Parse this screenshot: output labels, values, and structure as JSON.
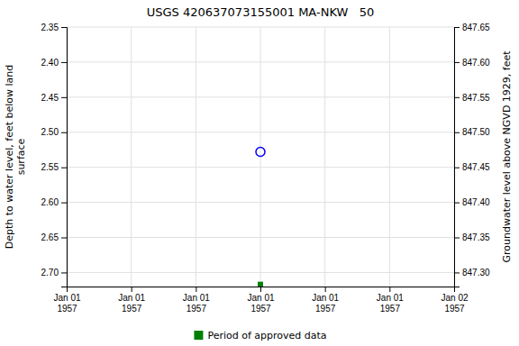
{
  "chart_data": {
    "type": "scatter",
    "title": "USGS 420637073155001 MA-NKW   50",
    "y_label": "Depth to water level, feet below land\n surface",
    "y2_label": "Groundwater level above NGVD 1929, feet",
    "categories": [
      "Jan 01\n1957",
      "Jan 01\n1957",
      "Jan 01\n1957",
      "Jan 01\n1957",
      "Jan 01\n1957",
      "Jan 01\n1957",
      "Jan 02\n1957"
    ],
    "series": [
      {
        "color": "#0000ff",
        "marker": "circle-open",
        "values": [
          null,
          null,
          null,
          2.528,
          null,
          null,
          null
        ]
      },
      {
        "name": "Period of approved data",
        "color": "#008000",
        "marker": "square",
        "values": [
          null,
          null,
          null,
          2.717,
          null,
          null,
          null
        ]
      }
    ],
    "ylim": [
      2.72,
      2.35
    ],
    "yticks": [
      2.35,
      {
        "value": 2.4,
        "label": "2.40"
      },
      2.45,
      {
        "value": 2.5,
        "label": "2.50"
      },
      2.55,
      {
        "value": 2.6,
        "label": "2.60"
      },
      2.65,
      {
        "value": 2.7,
        "label": "2.70"
      }
    ],
    "y2lim": [
      847.28,
      847.65
    ],
    "y2ticks": [
      847.65,
      {
        "value": 847.6,
        "label": "847.60"
      },
      847.55,
      {
        "value": 847.5,
        "label": "847.50"
      },
      847.45,
      {
        "value": 847.4,
        "label": "847.40"
      },
      847.35,
      {
        "value": 847.3,
        "label": "847.30"
      }
    ],
    "grid": true,
    "legend": "bottom"
  }
}
